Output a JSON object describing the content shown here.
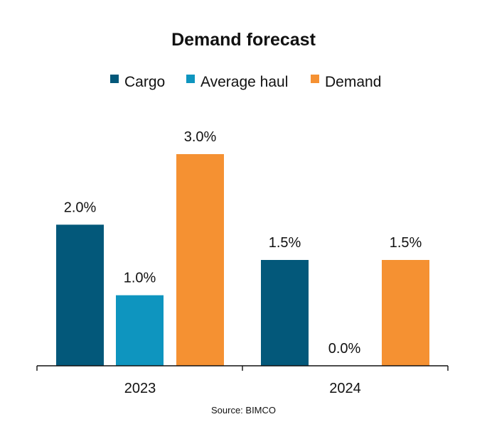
{
  "chart_data": {
    "type": "bar",
    "title": "Demand forecast",
    "categories": [
      "2023",
      "2024"
    ],
    "series": [
      {
        "name": "Cargo",
        "values": [
          2.0,
          1.5
        ],
        "color": "#03587A"
      },
      {
        "name": "Average haul",
        "values": [
          1.0,
          0.0
        ],
        "color": "#0E95BF"
      },
      {
        "name": "Demand",
        "values": [
          3.0,
          1.5
        ],
        "color": "#F59132"
      }
    ],
    "value_format": "percent_one_decimal",
    "ylim": [
      0,
      3.0
    ],
    "grid": false,
    "legend_position": "top"
  },
  "source": "Source: BIMCO"
}
